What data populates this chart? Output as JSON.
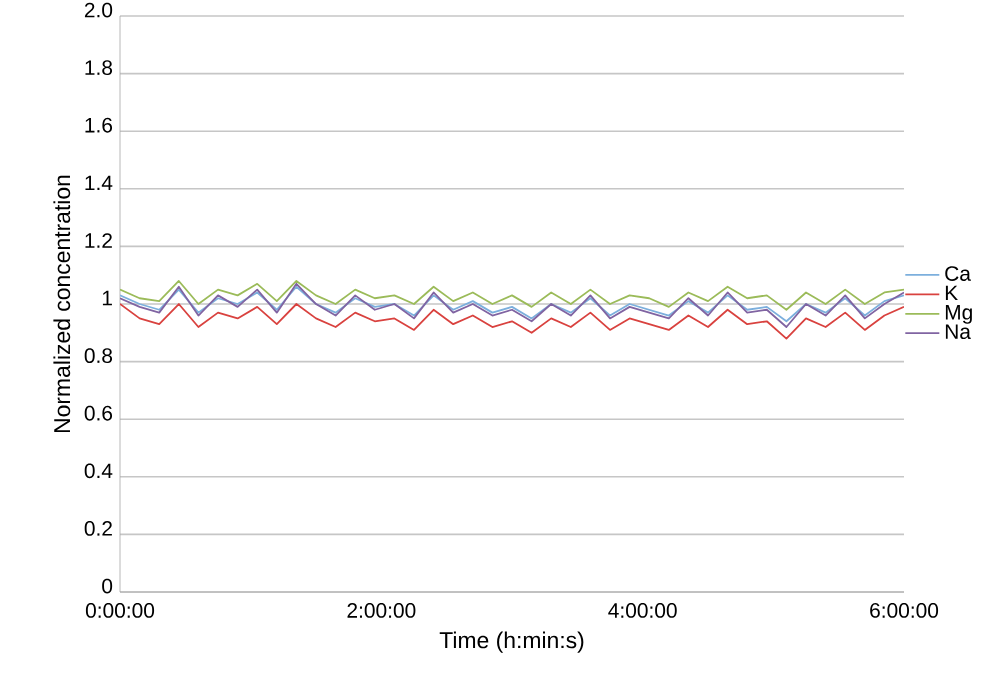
{
  "chart_data": {
    "type": "line",
    "xlabel": "Time (h:min:s)",
    "ylabel": "Normalized concentration",
    "x": [
      0,
      0.15,
      0.3,
      0.45,
      0.6,
      0.75,
      0.9,
      1.05,
      1.2,
      1.35,
      1.5,
      1.65,
      1.8,
      1.95,
      2.1,
      2.25,
      2.4,
      2.55,
      2.7,
      2.85,
      3,
      3.15,
      3.3,
      3.45,
      3.6,
      3.75,
      3.9,
      4.05,
      4.2,
      4.35,
      4.5,
      4.65,
      4.8,
      4.95,
      5.1,
      5.25,
      5.4,
      5.55,
      5.7,
      5.85,
      6
    ],
    "series": [
      {
        "name": "Ca",
        "color": "#7cafdd",
        "values": [
          1.03,
          1.0,
          0.98,
          1.05,
          0.97,
          1.02,
          1.0,
          1.04,
          0.98,
          1.06,
          1.0,
          0.97,
          1.02,
          0.99,
          1.0,
          0.96,
          1.03,
          0.98,
          1.01,
          0.97,
          0.99,
          0.95,
          1.0,
          0.97,
          1.02,
          0.96,
          1.0,
          0.98,
          0.96,
          1.01,
          0.97,
          1.03,
          0.98,
          0.99,
          0.94,
          1.0,
          0.97,
          1.02,
          0.96,
          1.01,
          1.03
        ]
      },
      {
        "name": "K",
        "color": "#d9423f",
        "values": [
          1.0,
          0.95,
          0.93,
          1.0,
          0.92,
          0.97,
          0.95,
          0.99,
          0.93,
          1.0,
          0.95,
          0.92,
          0.97,
          0.94,
          0.95,
          0.91,
          0.98,
          0.93,
          0.96,
          0.92,
          0.94,
          0.9,
          0.95,
          0.92,
          0.97,
          0.91,
          0.95,
          0.93,
          0.91,
          0.96,
          0.92,
          0.98,
          0.93,
          0.94,
          0.88,
          0.95,
          0.92,
          0.97,
          0.91,
          0.96,
          0.99
        ]
      },
      {
        "name": "Mg",
        "color": "#9bbb59",
        "values": [
          1.05,
          1.02,
          1.01,
          1.08,
          1.0,
          1.05,
          1.03,
          1.07,
          1.01,
          1.08,
          1.03,
          1.0,
          1.05,
          1.02,
          1.03,
          1.0,
          1.06,
          1.01,
          1.04,
          1.0,
          1.03,
          0.99,
          1.04,
          1.0,
          1.05,
          1.0,
          1.03,
          1.02,
          0.99,
          1.04,
          1.01,
          1.06,
          1.02,
          1.03,
          0.98,
          1.04,
          1.0,
          1.05,
          1.0,
          1.04,
          1.05
        ]
      },
      {
        "name": "Na",
        "color": "#8064a2",
        "values": [
          1.02,
          0.99,
          0.97,
          1.06,
          0.96,
          1.03,
          0.99,
          1.05,
          0.97,
          1.07,
          1.0,
          0.96,
          1.03,
          0.98,
          1.0,
          0.95,
          1.04,
          0.97,
          1.0,
          0.96,
          0.98,
          0.94,
          1.0,
          0.96,
          1.03,
          0.95,
          0.99,
          0.97,
          0.95,
          1.02,
          0.96,
          1.04,
          0.97,
          0.98,
          0.92,
          1.0,
          0.96,
          1.03,
          0.95,
          1.0,
          1.04
        ]
      }
    ],
    "xlim": [
      0,
      6
    ],
    "xticks": [
      {
        "value": 0,
        "label": "0:00:00"
      },
      {
        "value": 2,
        "label": "2:00:00"
      },
      {
        "value": 4,
        "label": "4:00:00"
      },
      {
        "value": 6,
        "label": "6:00:00"
      }
    ],
    "ylim": [
      0,
      2
    ],
    "yticks": [
      {
        "value": 0,
        "label": "0"
      },
      {
        "value": 0.2,
        "label": "0.2"
      },
      {
        "value": 0.4,
        "label": "0.4"
      },
      {
        "value": 0.6,
        "label": "0.6"
      },
      {
        "value": 0.8,
        "label": "0.8"
      },
      {
        "value": 1,
        "label": "1"
      },
      {
        "value": 1.2,
        "label": "1.2"
      },
      {
        "value": 1.4,
        "label": "1.4"
      },
      {
        "value": 1.6,
        "label": "1.6"
      },
      {
        "value": 1.8,
        "label": "1.8"
      },
      {
        "value": 2,
        "label": "2.0"
      }
    ],
    "grid": "y",
    "legend": "right",
    "marker": "none",
    "line_style": "solid"
  }
}
